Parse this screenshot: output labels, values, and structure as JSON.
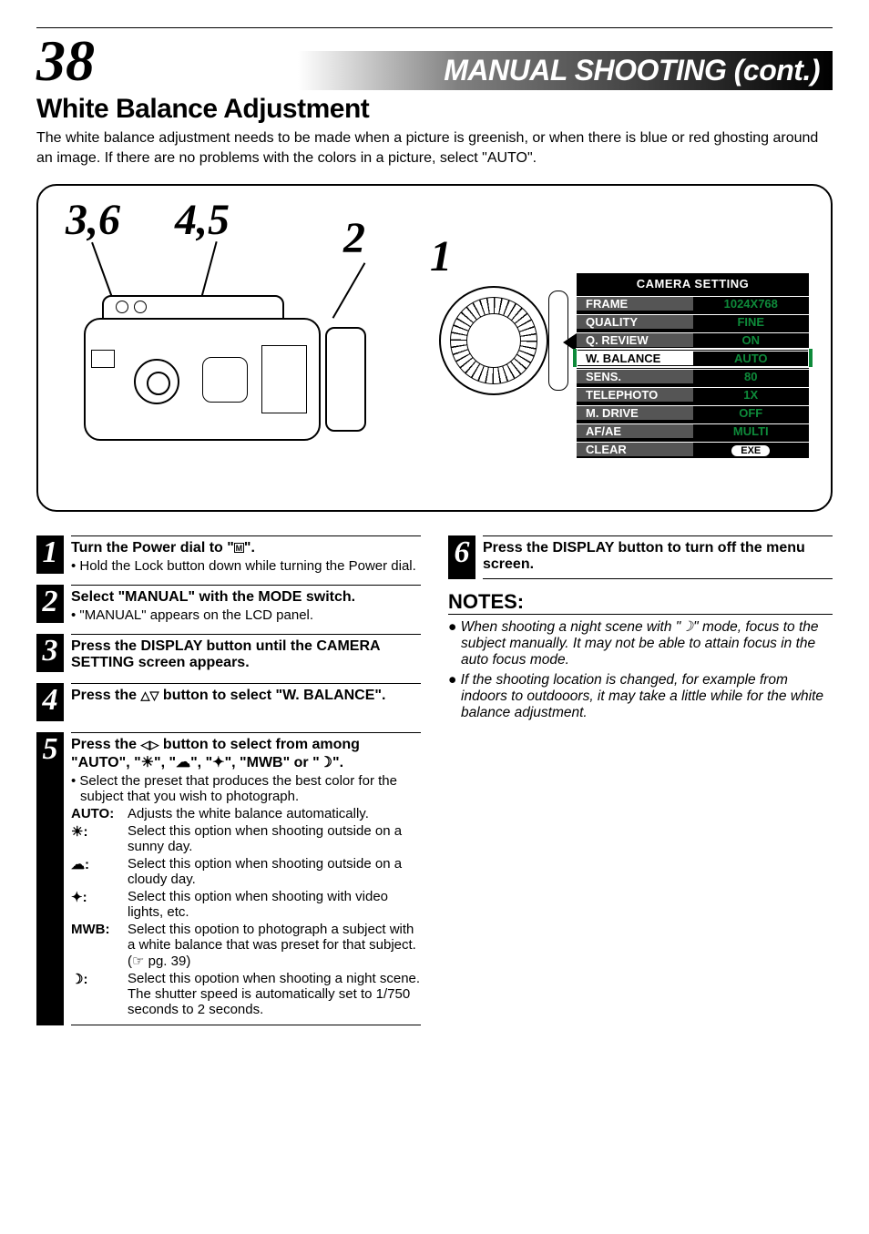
{
  "header": {
    "page_number": "38",
    "section_title": "MANUAL SHOOTING (cont.)",
    "subtitle": "White Balance Adjustment",
    "intro": "The white balance adjustment needs to be made when a picture is greenish, or when there is blue or red ghosting around an image. If there are no problems with the colors in a picture, select \"AUTO\"."
  },
  "diagram": {
    "callouts": {
      "c36": "3,6",
      "c45": "4,5",
      "c2": "2",
      "c1": "1"
    }
  },
  "settings": {
    "title": "CAMERA SETTING",
    "rows": [
      {
        "label": "FRAME",
        "value": "1024X768",
        "hl": false
      },
      {
        "label": "QUALITY",
        "value": "FINE",
        "hl": false
      },
      {
        "label": "Q. REVIEW",
        "value": "ON",
        "hl": false
      },
      {
        "label": "W. BALANCE",
        "value": "AUTO",
        "hl": true
      },
      {
        "label": "SENS.",
        "value": "80",
        "hl": false
      },
      {
        "label": "TELEPHOTO",
        "value": "1X",
        "hl": false
      },
      {
        "label": "M. DRIVE",
        "value": "OFF",
        "hl": false
      },
      {
        "label": "AF/AE",
        "value": "MULTI",
        "hl": false
      },
      {
        "label": "CLEAR",
        "value": "EXE",
        "hl": false,
        "exe": true
      }
    ]
  },
  "steps_left": [
    {
      "no": "1",
      "head_pre": "Turn the Power dial to \"",
      "head_post": "\".",
      "dial_glyph": "M",
      "sub": "Hold the Lock button down while turning the Power dial."
    },
    {
      "no": "2",
      "head": "Select \"MANUAL\" with the MODE switch.",
      "sub": "\"MANUAL\" appears on the LCD panel."
    },
    {
      "no": "3",
      "head": "Press the DISPLAY button until the CAMERA SETTING screen appears."
    },
    {
      "no": "4",
      "head_pre": "Press the ",
      "head_post": " button to select \"W. BALANCE\".",
      "tri_ud": true
    },
    {
      "no": "5",
      "head_pre": "Press the ",
      "head_mid": " button to select from among \"AUTO\", \"",
      "head_opts": [
        "☀",
        "☁",
        "✦",
        "MWB",
        "☽"
      ],
      "head_post": "\".",
      "tri_lr": true,
      "sub": "Select the preset that produces the best color for the subject that you wish to photograph.",
      "wb": [
        {
          "key": "AUTO:",
          "desc": "Adjusts the white balance automatically."
        },
        {
          "key": "☀:",
          "desc": "Select this option when shooting outside on a sunny day."
        },
        {
          "key": "☁:",
          "desc": "Select this option when shooting outside on a cloudy day."
        },
        {
          "key": "✦:",
          "desc": "Select this option when shooting with video lights, etc."
        },
        {
          "key": "MWB:",
          "desc": "Select this opotion to photograph a subject with a white balance that was preset for that subject. (☞ pg. 39)"
        },
        {
          "key": "☽:",
          "desc": "Select this opotion when shooting a night scene. The shutter speed is automatically set to 1/750 seconds to 2 seconds."
        }
      ]
    }
  ],
  "steps_right": [
    {
      "no": "6",
      "head": "Press the DISPLAY button to turn off the menu screen."
    }
  ],
  "notes": {
    "heading": "NOTES:",
    "items": [
      "When shooting a night scene with \"☽\" mode, focus to the subject manually. It may not be able to attain focus in the auto focus mode.",
      "If the shooting location is changed, for example from indoors to outdooors, it may take a little while for the white balance adjustment."
    ]
  },
  "style": {
    "accent_green": "#0e8a3a",
    "page_bg": "#ffffff"
  }
}
